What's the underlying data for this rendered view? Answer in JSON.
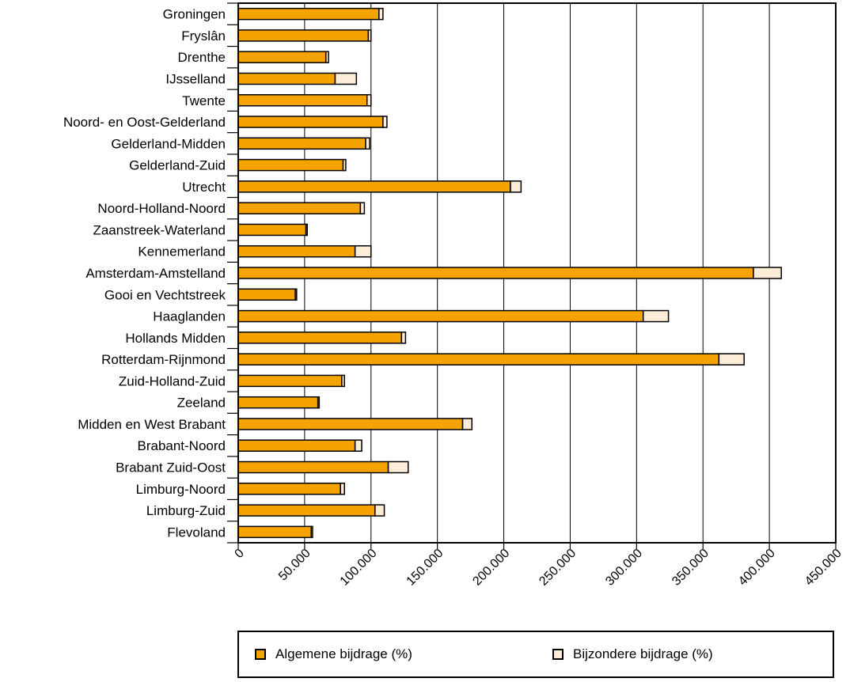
{
  "chart_data": {
    "type": "bar",
    "orientation": "horizontal",
    "stacked": true,
    "categories": [
      "Groningen",
      "Fryslân",
      "Drenthe",
      "IJsselland",
      "Twente",
      "Noord- en Oost-Gelderland",
      "Gelderland-Midden",
      "Gelderland-Zuid",
      "Utrecht",
      "Noord-Holland-Noord",
      "Zaanstreek-Waterland",
      "Kennemerland",
      "Amsterdam-Amstelland",
      "Gooi en Vechtstreek",
      "Haaglanden",
      "Hollands Midden",
      "Rotterdam-Rijnmond",
      "Zuid-Holland-Zuid",
      "Zeeland",
      "Midden en West Brabant",
      "Brabant-Noord",
      "Brabant Zuid-Oost",
      "Limburg-Noord",
      "Limburg-Zuid",
      "Flevoland"
    ],
    "series": [
      {
        "name": "Algemene bijdrage (%)",
        "color": "#F5A300",
        "values": [
          106000,
          98000,
          66000,
          73000,
          97000,
          109000,
          96000,
          79000,
          205000,
          92000,
          51000,
          88000,
          388000,
          43000,
          305000,
          123000,
          362000,
          78000,
          60000,
          169000,
          88000,
          113000,
          77000,
          103000,
          55000
        ]
      },
      {
        "name": "Bijzondere bijdrage (%)",
        "color": "#FDECD8",
        "values": [
          3000,
          2000,
          2000,
          16000,
          3000,
          3000,
          3000,
          2000,
          8000,
          3000,
          1000,
          12000,
          21000,
          1000,
          19000,
          3000,
          19000,
          2000,
          1000,
          7000,
          5000,
          15000,
          3000,
          7000,
          1000
        ]
      }
    ],
    "x_ticks": [
      "0",
      "50.000",
      "100.000",
      "150.000",
      "200.000",
      "250.000",
      "300.000",
      "350.000",
      "400.000",
      "450.000"
    ],
    "xlim": [
      0,
      450000
    ],
    "grid": true,
    "legend_position": "bottom-right"
  }
}
